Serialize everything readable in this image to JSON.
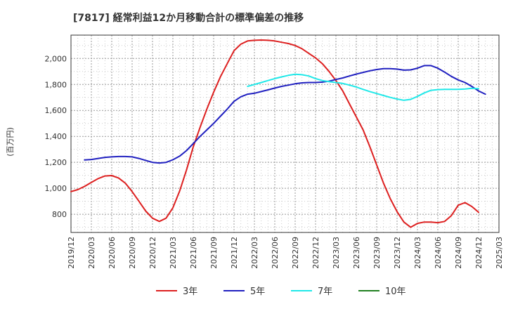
{
  "chart_data": {
    "type": "line",
    "title": "[7817]  経常利益12か月移動合計の標準偏差の推移",
    "ylabel": "(百万円)",
    "xlabel": "",
    "ylim": [
      660,
      2180
    ],
    "y_ticks": [
      800,
      1000,
      1200,
      1400,
      1600,
      1800,
      2000
    ],
    "y_tick_labels": [
      "800",
      "1,000",
      "1,200",
      "1,400",
      "1,600",
      "1,800",
      "2,000"
    ],
    "x_range": [
      "2019-12",
      "2025-03"
    ],
    "x_tick_labels": [
      "2019/12",
      "2020/03",
      "2020/06",
      "2020/09",
      "2020/12",
      "2021/03",
      "2021/06",
      "2021/09",
      "2021/12",
      "2022/03",
      "2022/06",
      "2022/09",
      "2022/12",
      "2023/03",
      "2023/06",
      "2023/09",
      "2023/12",
      "2024/03",
      "2024/06",
      "2024/09",
      "2024/12",
      "2025/03"
    ],
    "grid": true,
    "legend_position": "bottom",
    "series": [
      {
        "name": "3年",
        "color": "#dd2020",
        "points": [
          [
            "2019-12",
            975
          ],
          [
            "2020-01",
            990
          ],
          [
            "2020-02",
            1015
          ],
          [
            "2020-03",
            1045
          ],
          [
            "2020-04",
            1075
          ],
          [
            "2020-05",
            1095
          ],
          [
            "2020-06",
            1098
          ],
          [
            "2020-07",
            1080
          ],
          [
            "2020-08",
            1040
          ],
          [
            "2020-09",
            975
          ],
          [
            "2020-10",
            900
          ],
          [
            "2020-11",
            825
          ],
          [
            "2020-12",
            770
          ],
          [
            "2021-01",
            745
          ],
          [
            "2021-02",
            770
          ],
          [
            "2021-03",
            850
          ],
          [
            "2021-04",
            980
          ],
          [
            "2021-05",
            1140
          ],
          [
            "2021-06",
            1320
          ],
          [
            "2021-07",
            1470
          ],
          [
            "2021-08",
            1610
          ],
          [
            "2021-09",
            1740
          ],
          [
            "2021-10",
            1860
          ],
          [
            "2021-11",
            1960
          ],
          [
            "2021-12",
            2060
          ],
          [
            "2022-01",
            2110
          ],
          [
            "2022-02",
            2135
          ],
          [
            "2022-03",
            2140
          ],
          [
            "2022-04",
            2142
          ],
          [
            "2022-05",
            2140
          ],
          [
            "2022-06",
            2135
          ],
          [
            "2022-07",
            2125
          ],
          [
            "2022-08",
            2115
          ],
          [
            "2022-09",
            2100
          ],
          [
            "2022-10",
            2075
          ],
          [
            "2022-11",
            2040
          ],
          [
            "2022-12",
            2005
          ],
          [
            "2023-01",
            1960
          ],
          [
            "2023-02",
            1900
          ],
          [
            "2023-03",
            1830
          ],
          [
            "2023-04",
            1750
          ],
          [
            "2023-05",
            1650
          ],
          [
            "2023-06",
            1550
          ],
          [
            "2023-07",
            1450
          ],
          [
            "2023-08",
            1320
          ],
          [
            "2023-09",
            1180
          ],
          [
            "2023-10",
            1040
          ],
          [
            "2023-11",
            920
          ],
          [
            "2023-12",
            820
          ],
          [
            "2024-01",
            740
          ],
          [
            "2024-02",
            700
          ],
          [
            "2024-03",
            730
          ],
          [
            "2024-04",
            740
          ],
          [
            "2024-05",
            740
          ],
          [
            "2024-06",
            735
          ],
          [
            "2024-07",
            745
          ],
          [
            "2024-08",
            790
          ],
          [
            "2024-09",
            870
          ],
          [
            "2024-10",
            890
          ],
          [
            "2024-11",
            860
          ],
          [
            "2024-12",
            815
          ]
        ]
      },
      {
        "name": "5年",
        "color": "#2020c0",
        "points": [
          [
            "2020-02",
            1218
          ],
          [
            "2020-03",
            1222
          ],
          [
            "2020-04",
            1230
          ],
          [
            "2020-05",
            1238
          ],
          [
            "2020-06",
            1242
          ],
          [
            "2020-07",
            1245
          ],
          [
            "2020-08",
            1245
          ],
          [
            "2020-09",
            1242
          ],
          [
            "2020-10",
            1230
          ],
          [
            "2020-11",
            1215
          ],
          [
            "2020-12",
            1200
          ],
          [
            "2021-01",
            1195
          ],
          [
            "2021-02",
            1200
          ],
          [
            "2021-03",
            1220
          ],
          [
            "2021-04",
            1248
          ],
          [
            "2021-05",
            1290
          ],
          [
            "2021-06",
            1345
          ],
          [
            "2021-07",
            1400
          ],
          [
            "2021-08",
            1450
          ],
          [
            "2021-09",
            1500
          ],
          [
            "2021-10",
            1555
          ],
          [
            "2021-11",
            1610
          ],
          [
            "2021-12",
            1670
          ],
          [
            "2022-01",
            1705
          ],
          [
            "2022-02",
            1725
          ],
          [
            "2022-03",
            1732
          ],
          [
            "2022-04",
            1745
          ],
          [
            "2022-05",
            1758
          ],
          [
            "2022-06",
            1772
          ],
          [
            "2022-07",
            1785
          ],
          [
            "2022-08",
            1795
          ],
          [
            "2022-09",
            1805
          ],
          [
            "2022-10",
            1812
          ],
          [
            "2022-11",
            1815
          ],
          [
            "2022-12",
            1815
          ],
          [
            "2023-01",
            1818
          ],
          [
            "2023-02",
            1825
          ],
          [
            "2023-03",
            1838
          ],
          [
            "2023-04",
            1850
          ],
          [
            "2023-05",
            1865
          ],
          [
            "2023-06",
            1880
          ],
          [
            "2023-07",
            1893
          ],
          [
            "2023-08",
            1905
          ],
          [
            "2023-09",
            1915
          ],
          [
            "2023-10",
            1922
          ],
          [
            "2023-11",
            1922
          ],
          [
            "2023-12",
            1918
          ],
          [
            "2024-01",
            1910
          ],
          [
            "2024-02",
            1912
          ],
          [
            "2024-03",
            1925
          ],
          [
            "2024-04",
            1945
          ],
          [
            "2024-05",
            1945
          ],
          [
            "2024-06",
            1925
          ],
          [
            "2024-07",
            1895
          ],
          [
            "2024-08",
            1862
          ],
          [
            "2024-09",
            1835
          ],
          [
            "2024-10",
            1815
          ],
          [
            "2024-11",
            1785
          ],
          [
            "2024-12",
            1750
          ],
          [
            "2025-01",
            1725
          ]
        ]
      },
      {
        "name": "7年",
        "color": "#20e8e8",
        "points": [
          [
            "2022-02",
            1785
          ],
          [
            "2022-03",
            1800
          ],
          [
            "2022-04",
            1815
          ],
          [
            "2022-05",
            1830
          ],
          [
            "2022-06",
            1845
          ],
          [
            "2022-07",
            1858
          ],
          [
            "2022-08",
            1870
          ],
          [
            "2022-09",
            1878
          ],
          [
            "2022-10",
            1875
          ],
          [
            "2022-11",
            1865
          ],
          [
            "2022-12",
            1845
          ],
          [
            "2023-01",
            1830
          ],
          [
            "2023-02",
            1822
          ],
          [
            "2023-03",
            1815
          ],
          [
            "2023-04",
            1808
          ],
          [
            "2023-05",
            1795
          ],
          [
            "2023-06",
            1780
          ],
          [
            "2023-07",
            1762
          ],
          [
            "2023-08",
            1745
          ],
          [
            "2023-09",
            1730
          ],
          [
            "2023-10",
            1715
          ],
          [
            "2023-11",
            1700
          ],
          [
            "2023-12",
            1688
          ],
          [
            "2024-01",
            1678
          ],
          [
            "2024-02",
            1685
          ],
          [
            "2024-03",
            1708
          ],
          [
            "2024-04",
            1735
          ],
          [
            "2024-05",
            1755
          ],
          [
            "2024-06",
            1760
          ],
          [
            "2024-07",
            1762
          ],
          [
            "2024-08",
            1762
          ],
          [
            "2024-09",
            1762
          ],
          [
            "2024-10",
            1765
          ],
          [
            "2024-11",
            1770
          ],
          [
            "2024-12",
            1768
          ]
        ]
      },
      {
        "name": "10年",
        "color": "#208020",
        "points": []
      }
    ]
  }
}
